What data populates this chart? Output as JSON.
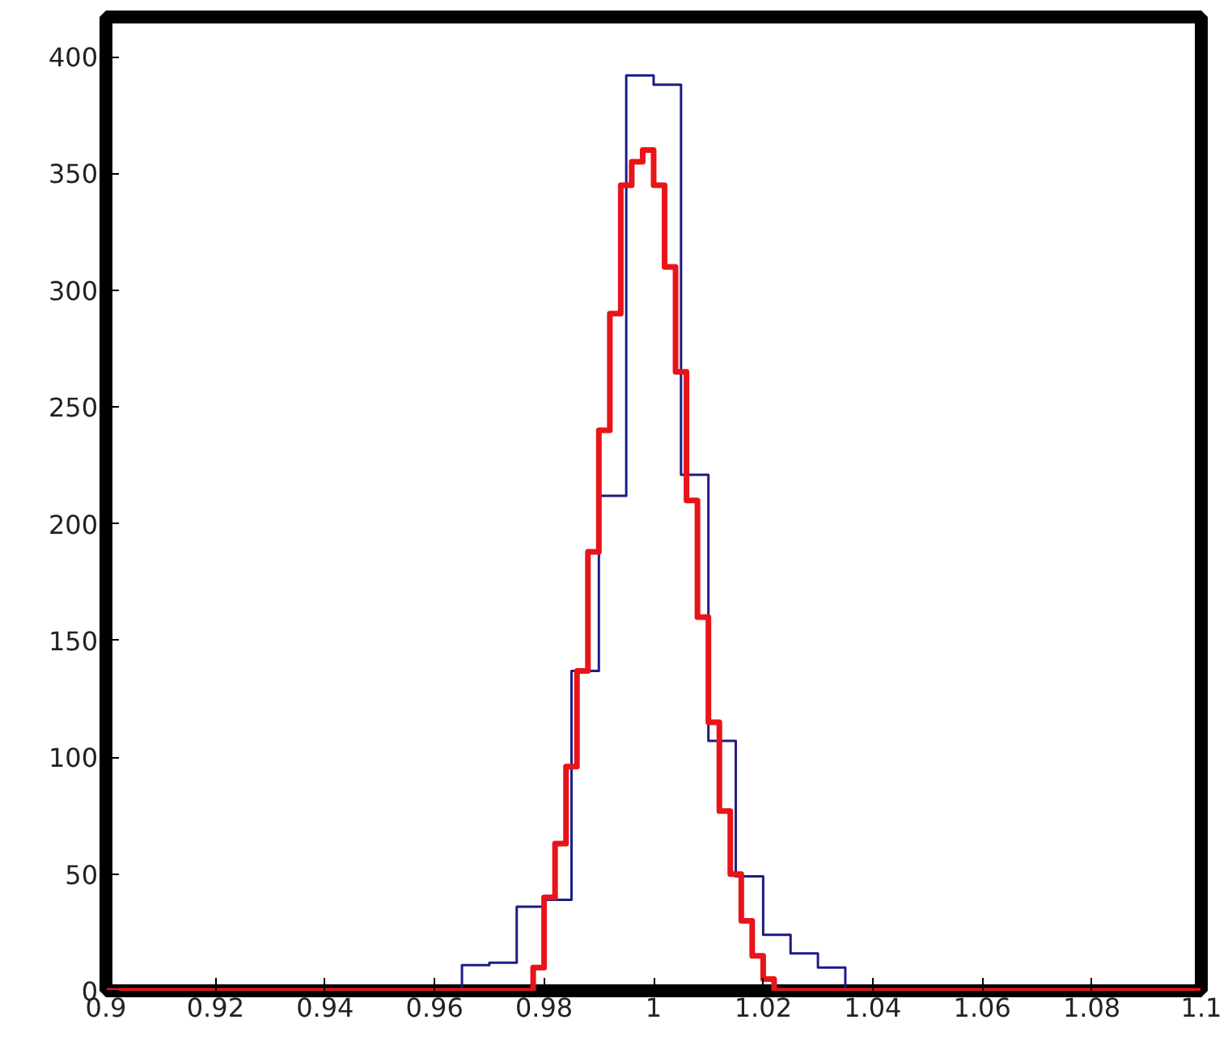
{
  "chart_data": {
    "type": "histogram",
    "xlim": [
      0.9,
      1.1
    ],
    "ylim": [
      0,
      417
    ],
    "xticks": [
      0.9,
      0.92,
      0.94,
      0.96,
      0.98,
      1,
      1.02,
      1.04,
      1.06,
      1.08,
      1.1
    ],
    "yticks": [
      0,
      50,
      100,
      150,
      200,
      250,
      300,
      350,
      400
    ],
    "grid": false,
    "bins": [
      0.9,
      0.965,
      0.97,
      0.975,
      0.978,
      0.98,
      0.982,
      0.984,
      0.985,
      0.986,
      0.988,
      0.99,
      0.992,
      0.994,
      0.995,
      0.996,
      0.998,
      1.0,
      1.002,
      1.004,
      1.005,
      1.006,
      1.008,
      1.01,
      1.012,
      1.014,
      1.015,
      1.016,
      1.018,
      1.02,
      1.022,
      1.025,
      1.03,
      1.035,
      1.1
    ],
    "series": [
      {
        "color": "#1c1c84",
        "values": [
          0,
          11,
          12,
          36,
          36,
          39,
          39,
          39,
          137,
          137,
          137,
          212,
          212,
          212,
          392,
          392,
          392,
          388,
          388,
          388,
          221,
          221,
          221,
          107,
          107,
          107,
          49,
          49,
          49,
          24,
          24,
          16,
          10,
          0
        ]
      },
      {
        "color": "#e8141a",
        "values": [
          0,
          0,
          0,
          0,
          10,
          40,
          63,
          96,
          96,
          137,
          188,
          240,
          290,
          345,
          345,
          355,
          360,
          345,
          310,
          265,
          265,
          210,
          160,
          115,
          77,
          50,
          50,
          30,
          15,
          5,
          0,
          0,
          0,
          0
        ]
      }
    ]
  }
}
